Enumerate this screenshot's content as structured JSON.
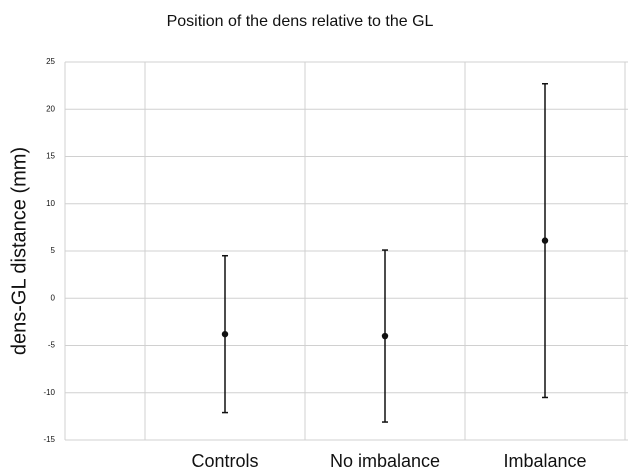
{
  "chart_data": {
    "type": "errorbar",
    "title": "Position of the dens relative to the GL",
    "y_label": "dens-GL distance (mm)",
    "categories": [
      "Controls",
      "No imbalance",
      "Imbalance"
    ],
    "values": [
      -3.8,
      -4,
      6.1
    ],
    "errors": [
      8.3,
      9.1,
      16.6
    ],
    "color": "#111111",
    "ylim": [
      -15,
      25
    ],
    "yticks": [
      -15,
      -10,
      -5,
      0,
      5,
      10,
      15,
      20,
      25
    ],
    "grid": true
  }
}
